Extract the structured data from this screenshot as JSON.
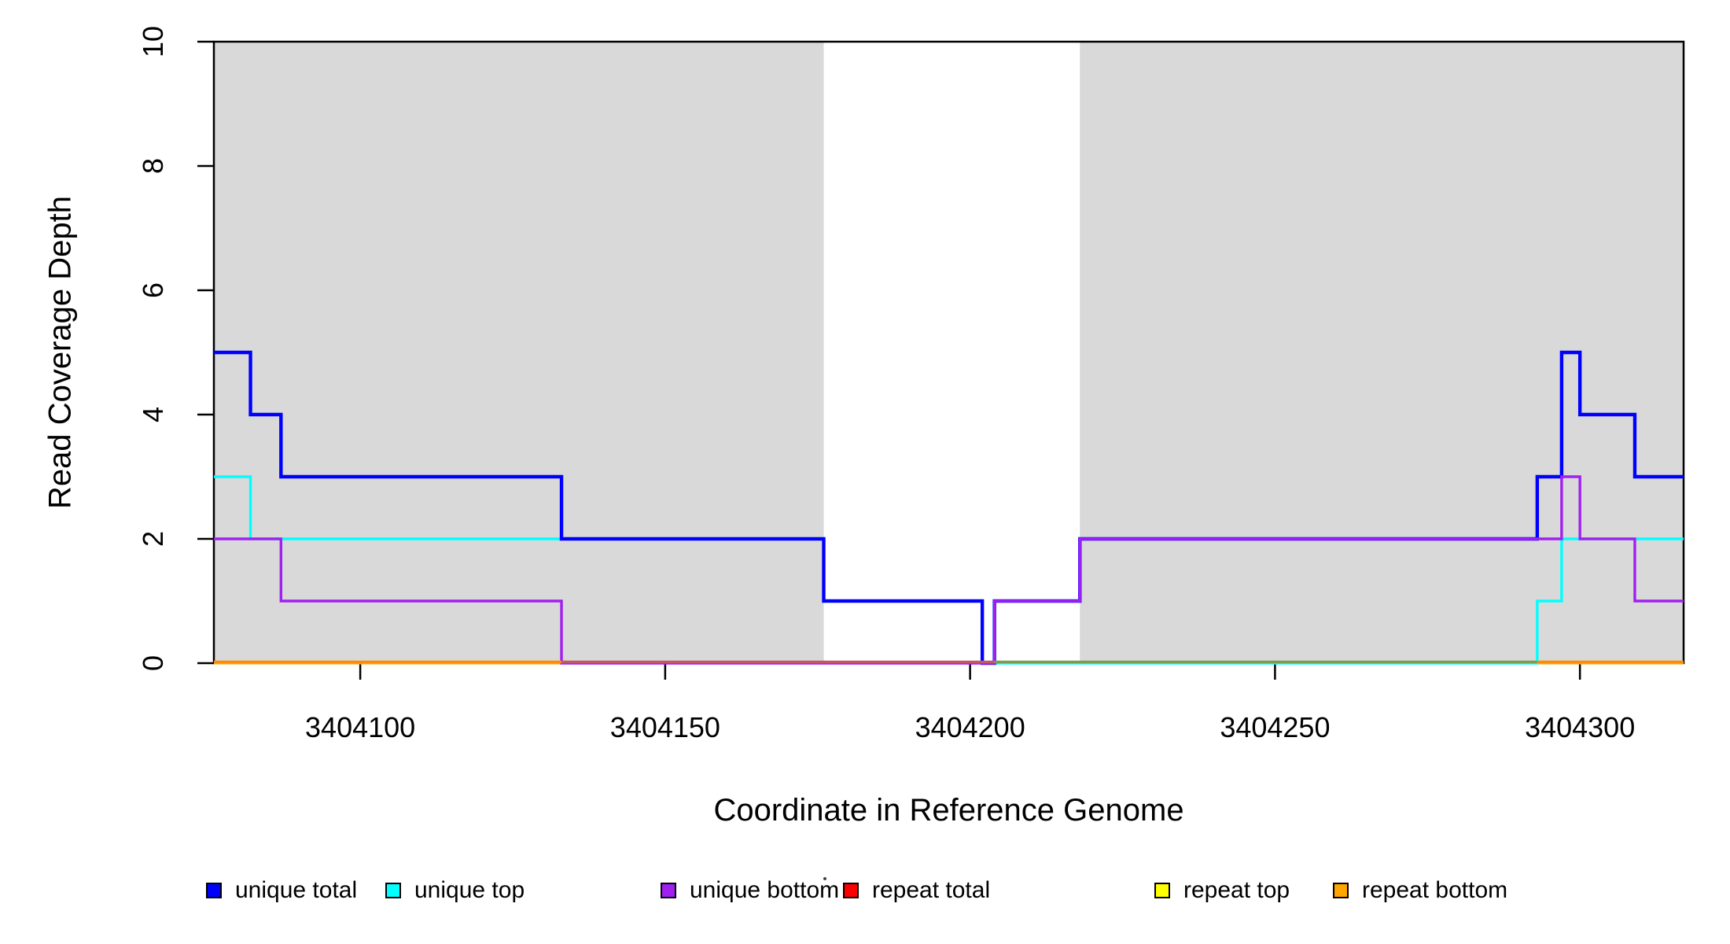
{
  "chart_data": {
    "type": "step",
    "title": "",
    "xlabel": "Coordinate in Reference Genome",
    "ylabel": "Read Coverage Depth",
    "xlim": [
      3404076,
      3404317
    ],
    "ylim": [
      0,
      10
    ],
    "x_ticks": [
      3404100,
      3404150,
      3404200,
      3404250,
      3404300
    ],
    "x_tick_labels": [
      "3404100",
      "3404150",
      "3404200",
      "3404250",
      "3404300"
    ],
    "y_ticks": [
      0,
      2,
      4,
      6,
      8,
      10
    ],
    "y_tick_labels": [
      "0",
      "2",
      "4",
      "6",
      "8",
      "10"
    ],
    "grid": false,
    "background_color": "#FFFFFF",
    "box_color": "#000000",
    "shaded_regions": [
      {
        "from": 3404076,
        "to": 3404176,
        "color": "#D9D9D9"
      },
      {
        "from": 3404218,
        "to": 3404317,
        "color": "#D9D9D9"
      }
    ],
    "series": [
      {
        "name": "repeat total",
        "color": "#FF0000",
        "width": 3,
        "points": [
          {
            "x": 3404076,
            "v": 0
          }
        ]
      },
      {
        "name": "repeat top",
        "color": "#FFFF00",
        "width": 3,
        "points": [
          {
            "x": 3404076,
            "v": 0
          }
        ]
      },
      {
        "name": "repeat bottom",
        "color": "#FFA500",
        "width": 3,
        "points": [
          {
            "x": 3404076,
            "v": 0
          }
        ]
      },
      {
        "name": "unique top",
        "color": "#00FFFF",
        "width": 3.4,
        "points": [
          {
            "x": 3404076,
            "v": 3
          },
          {
            "x": 3404082,
            "v": 2
          },
          {
            "x": 3404176,
            "v": 1
          },
          {
            "x": 3404202,
            "v": 0
          },
          {
            "x": 3404293,
            "v": 1
          },
          {
            "x": 3404297,
            "v": 2
          }
        ]
      },
      {
        "name": "unique total",
        "color": "#0000FF",
        "width": 4.4,
        "points": [
          {
            "x": 3404076,
            "v": 5
          },
          {
            "x": 3404082,
            "v": 4
          },
          {
            "x": 3404087,
            "v": 3
          },
          {
            "x": 3404133,
            "v": 2
          },
          {
            "x": 3404176,
            "v": 1
          },
          {
            "x": 3404202,
            "v": 0
          },
          {
            "x": 3404204,
            "v": 1
          },
          {
            "x": 3404218,
            "v": 2
          },
          {
            "x": 3404293,
            "v": 3
          },
          {
            "x": 3404297,
            "v": 5
          },
          {
            "x": 3404300,
            "v": 4
          },
          {
            "x": 3404309,
            "v": 3
          }
        ]
      },
      {
        "name": "unique bottom",
        "color": "#A020F0",
        "width": 3.4,
        "points": [
          {
            "x": 3404076,
            "v": 2
          },
          {
            "x": 3404087,
            "v": 1
          },
          {
            "x": 3404133,
            "v": 0
          },
          {
            "x": 3404204,
            "v": 1
          },
          {
            "x": 3404218,
            "v": 2
          },
          {
            "x": 3404297,
            "v": 3
          },
          {
            "x": 3404300,
            "v": 2
          },
          {
            "x": 3404309,
            "v": 1
          }
        ]
      }
    ],
    "baseline_overlap_segments": [
      {
        "from": 3404076,
        "to": 3404133,
        "color": "#FF8C00"
      },
      {
        "from": 3404133,
        "to": 3404204,
        "color": "#C4566A"
      },
      {
        "from": 3404204,
        "to": 3404293,
        "color": "#7D9B4E"
      },
      {
        "from": 3404293,
        "to": 3404317,
        "color": "#FF8C00"
      }
    ],
    "legend": [
      {
        "label": "unique total",
        "color": "#0000FF"
      },
      {
        "label": "unique top",
        "color": "#00FFFF"
      },
      {
        "label": "unique bottom",
        "color": "#A020F0"
      },
      {
        "label": "repeat total",
        "color": "#FF0000"
      },
      {
        "label": "repeat top",
        "color": "#FFFF00"
      },
      {
        "label": "repeat bottom",
        "color": "#FFA500"
      }
    ],
    "legend_position": "bottom"
  }
}
